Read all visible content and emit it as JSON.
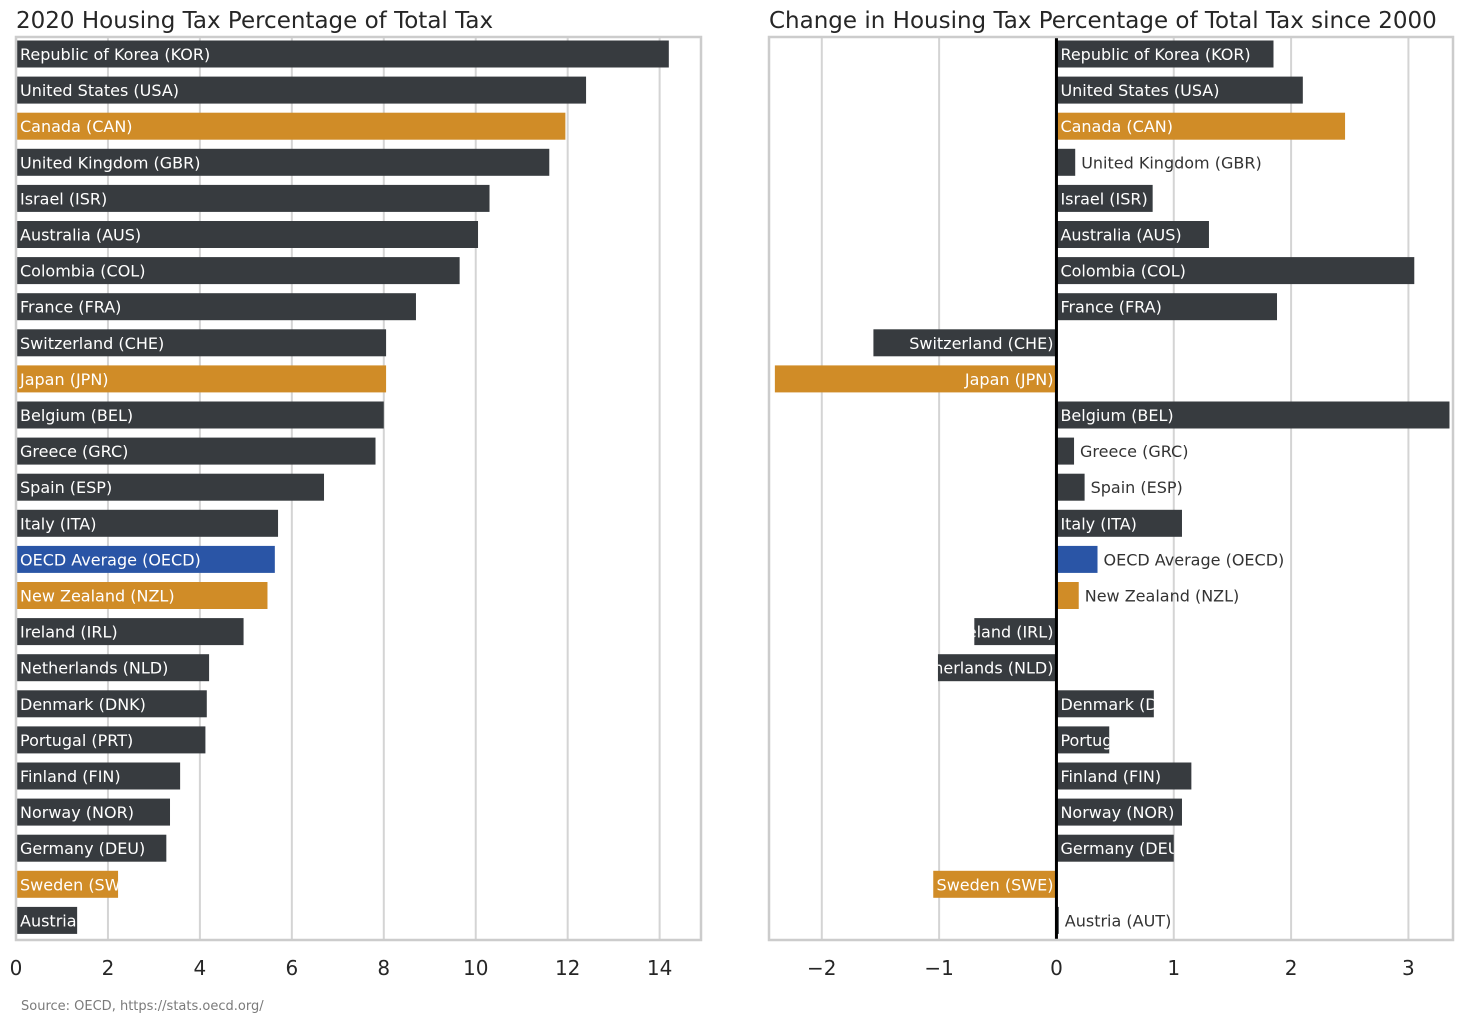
{
  "source_note": "Source: OECD, https://stats.oecd.org/",
  "colors": {
    "default": "#373b3f",
    "highlight": "#d08c27",
    "oecd": "#2a55a6",
    "grid": "#d4d4d4",
    "frame": "#cccccc",
    "zero_line": "#000000"
  },
  "chart_data": [
    {
      "type": "bar",
      "orientation": "horizontal",
      "title": "2020 Housing Tax Percentage of Total Tax",
      "xlim": [
        0,
        14.9
      ],
      "xticks": [
        0,
        2,
        4,
        6,
        8,
        10,
        12,
        14
      ],
      "grid": "vertical",
      "categories": [
        "Republic of Korea (KOR)",
        "United States (USA)",
        "Canada (CAN)",
        "United Kingdom (GBR)",
        "Israel (ISR)",
        "Australia (AUS)",
        "Colombia (COL)",
        "France (FRA)",
        "Switzerland (CHE)",
        "Japan (JPN)",
        "Belgium (BEL)",
        "Greece (GRC)",
        "Spain (ESP)",
        "Italy (ITA)",
        "OECD Average (OECD)",
        "New Zealand (NZL)",
        "Ireland (IRL)",
        "Netherlands (NLD)",
        "Denmark (DNK)",
        "Portugal (PRT)",
        "Finland (FIN)",
        "Norway (NOR)",
        "Germany (DEU)",
        "Sweden (SWE)",
        "Austria (AUT)"
      ],
      "values": [
        14.2,
        12.4,
        11.95,
        11.6,
        10.3,
        10.05,
        9.65,
        8.7,
        8.05,
        8.05,
        8.0,
        7.82,
        6.7,
        5.7,
        5.63,
        5.47,
        4.95,
        4.2,
        4.15,
        4.12,
        3.57,
        3.35,
        3.27,
        2.22,
        1.33
      ],
      "highlight": [
        "Canada (CAN)",
        "Japan (JPN)",
        "New Zealand (NZL)",
        "Sweden (SWE)"
      ],
      "reference": [
        "OECD Average (OECD)"
      ]
    },
    {
      "type": "bar",
      "orientation": "horizontal",
      "title": "Change in Housing Tax Percentage of Total Tax since 2000",
      "xlim": [
        -2.45,
        3.38
      ],
      "xticks": [
        -2,
        -1,
        0,
        1,
        2,
        3
      ],
      "xtick_labels": [
        "−2",
        "−1",
        "0",
        "1",
        "2",
        "3"
      ],
      "grid": "vertical",
      "categories": [
        "Republic of Korea (KOR)",
        "United States (USA)",
        "Canada (CAN)",
        "United Kingdom (GBR)",
        "Israel (ISR)",
        "Australia (AUS)",
        "Colombia (COL)",
        "France (FRA)",
        "Switzerland (CHE)",
        "Japan (JPN)",
        "Belgium (BEL)",
        "Greece (GRC)",
        "Spain (ESP)",
        "Italy (ITA)",
        "OECD Average (OECD)",
        "New Zealand (NZL)",
        "Ireland (IRL)",
        "Netherlands (NLD)",
        "Denmark (DNK)",
        "Portugal (PRT)",
        "Finland (FIN)",
        "Norway (NOR)",
        "Germany (DEU)",
        "Sweden (SWE)",
        "Austria (AUT)"
      ],
      "values": [
        1.85,
        2.1,
        2.46,
        0.16,
        0.82,
        1.3,
        3.05,
        1.88,
        -1.56,
        -2.4,
        3.35,
        0.15,
        0.24,
        1.07,
        0.35,
        0.19,
        -0.7,
        -1.01,
        0.83,
        0.45,
        1.15,
        1.07,
        1.0,
        -1.05,
        0.02
      ],
      "highlight": [
        "Canada (CAN)",
        "Japan (JPN)",
        "New Zealand (NZL)",
        "Sweden (SWE)"
      ],
      "reference": [
        "OECD Average (OECD)"
      ]
    }
  ]
}
